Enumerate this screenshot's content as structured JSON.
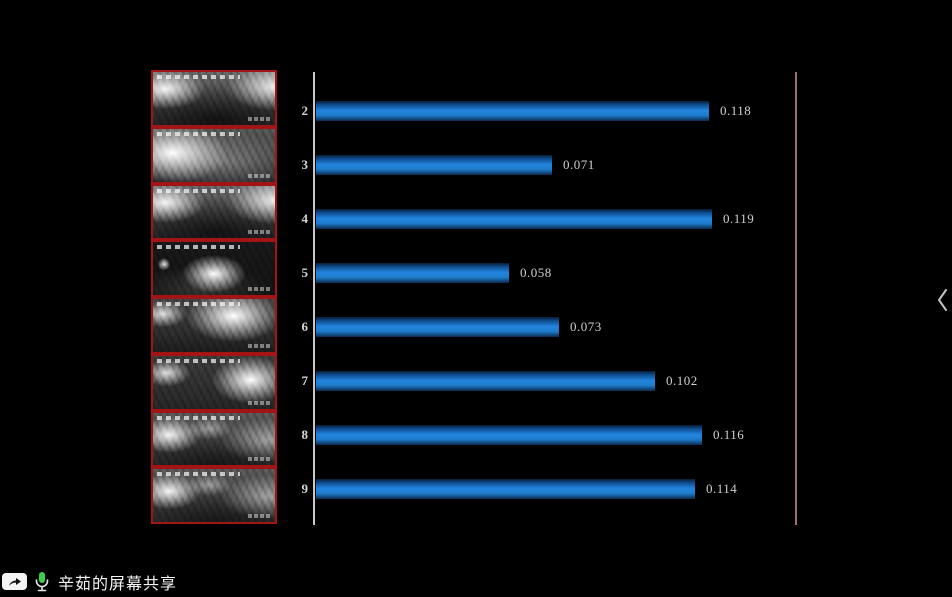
{
  "meeting_overlay": {
    "share_status_label": "辛茹的屏幕共享",
    "mic_active": true
  },
  "icons": {
    "screen_share": "screen-share-icon",
    "microphone": "microphone-active-icon",
    "collapse": "chevron-left-icon"
  },
  "colors": {
    "bar_blue": "#1e7ccc",
    "frame_border_red": "#a31414",
    "axis_gray": "#c9c9c9",
    "right_guide_pink": "#9e6e76",
    "mic_green": "#3bcf4e",
    "background": "#000000"
  },
  "thumbnail_strip": {
    "count": 8,
    "content": "infrared-night-video-frames"
  },
  "chart_data": {
    "type": "bar",
    "orientation": "horizontal",
    "categories": [
      "2",
      "3",
      "4",
      "5",
      "6",
      "7",
      "8",
      "9"
    ],
    "values": [
      0.118,
      0.071,
      0.119,
      0.058,
      0.073,
      0.102,
      0.116,
      0.114
    ],
    "value_labels": [
      "0.118",
      "0.071",
      "0.119",
      "0.058",
      "0.073",
      "0.102",
      "0.116",
      "0.114"
    ],
    "title": "",
    "xlabel": "",
    "ylabel": "",
    "xlim": [
      0,
      0.144
    ],
    "grid": false,
    "legend": false
  }
}
